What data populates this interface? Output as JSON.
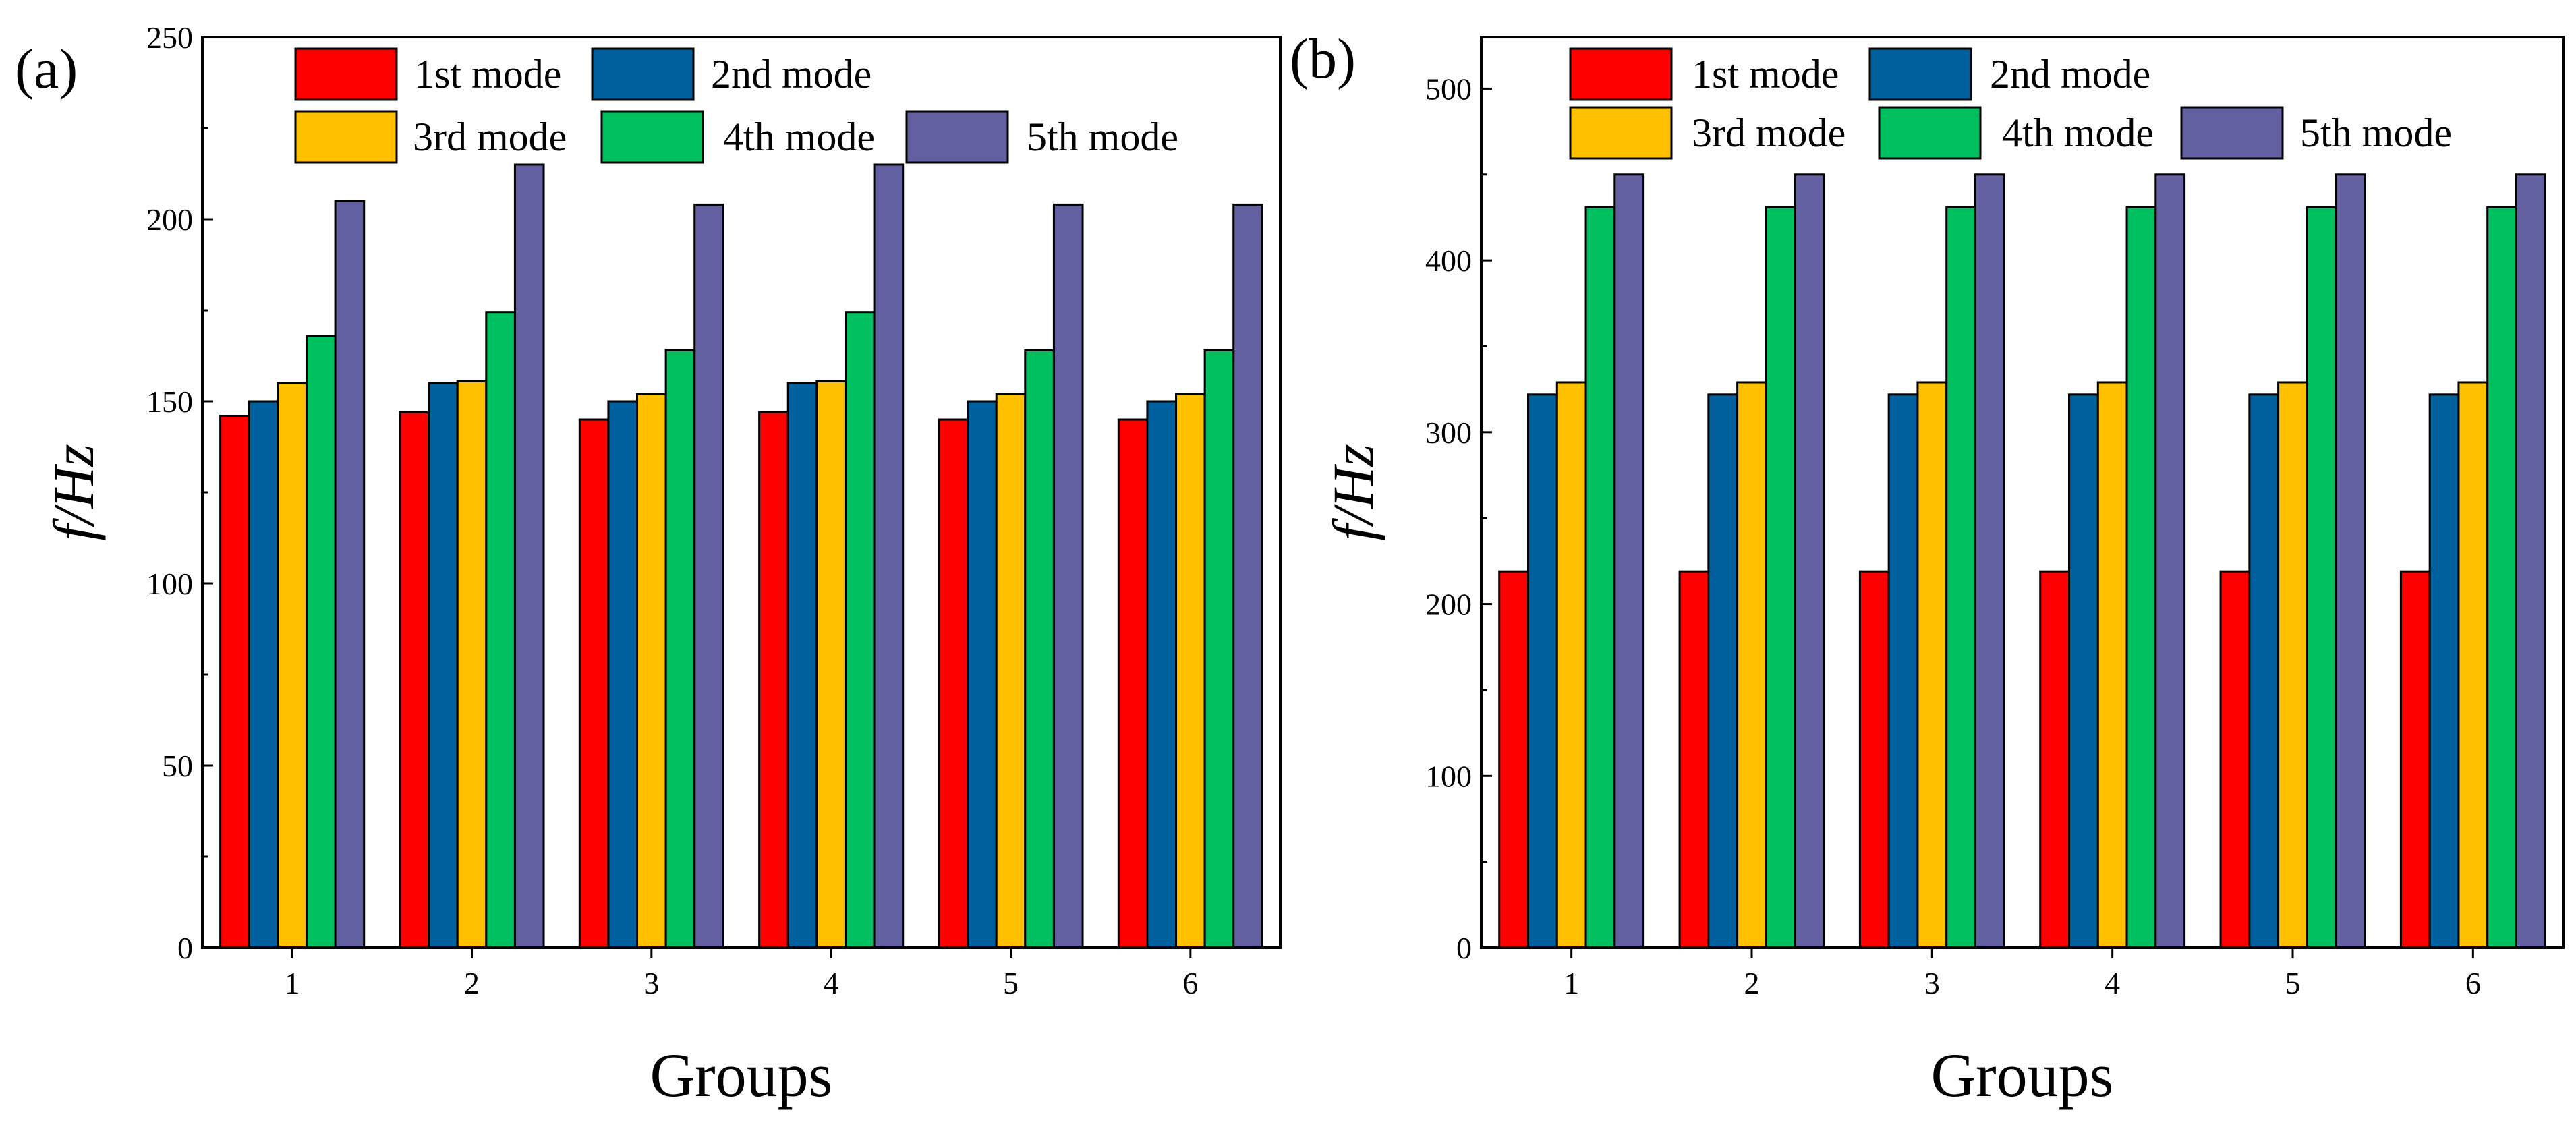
{
  "chart_data": [
    {
      "type": "bar",
      "panel_label": "(a)",
      "categories": [
        "1",
        "2",
        "3",
        "4",
        "5",
        "6"
      ],
      "series": [
        {
          "name": "1st mode",
          "color": "#ff0000",
          "values": [
            146,
            147,
            145,
            147,
            145,
            145
          ]
        },
        {
          "name": "2nd mode",
          "color": "#00619e",
          "values": [
            150,
            155,
            150,
            155,
            150,
            150
          ]
        },
        {
          "name": "3rd mode",
          "color": "#ffc000",
          "values": [
            155,
            155.5,
            152,
            155.5,
            152,
            152
          ]
        },
        {
          "name": "4th mode",
          "color": "#00c060",
          "values": [
            168,
            174.5,
            164,
            174.5,
            164,
            164
          ]
        },
        {
          "name": "5th mode",
          "color": "#6260a0",
          "values": [
            205,
            215,
            204,
            215,
            204,
            204
          ]
        }
      ],
      "xlabel": "Groups",
      "ylabel": "f/Hz",
      "ylim": [
        0,
        250
      ],
      "yticks": [
        "0",
        "50",
        "100",
        "150",
        "200",
        "250"
      ],
      "legend_position": "top"
    },
    {
      "type": "bar",
      "panel_label": "(b)",
      "categories": [
        "1",
        "2",
        "3",
        "4",
        "5",
        "6"
      ],
      "series": [
        {
          "name": "1st mode",
          "color": "#ff0000",
          "values": [
            219,
            219,
            219,
            219,
            219,
            219
          ]
        },
        {
          "name": "2nd mode",
          "color": "#00619e",
          "values": [
            322,
            322,
            322,
            322,
            322,
            322
          ]
        },
        {
          "name": "3rd mode",
          "color": "#ffc000",
          "values": [
            329,
            329,
            329,
            329,
            329,
            329
          ]
        },
        {
          "name": "4th mode",
          "color": "#00c060",
          "values": [
            431,
            431,
            431,
            431,
            431,
            431
          ]
        },
        {
          "name": "5th mode",
          "color": "#6260a0",
          "values": [
            450,
            450,
            450,
            450,
            450,
            450
          ]
        }
      ],
      "xlabel": "Groups",
      "ylabel": "f/Hz",
      "ylim": [
        0,
        530
      ],
      "yticks": [
        "0",
        "100",
        "200",
        "300",
        "400",
        "500"
      ],
      "legend_position": "top"
    }
  ]
}
